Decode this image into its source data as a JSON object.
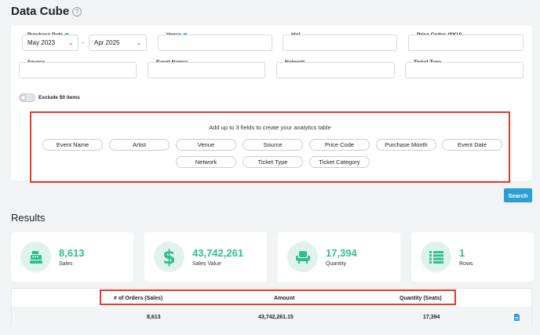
{
  "page": {
    "title": "Data Cube"
  },
  "filters": {
    "purchase_date_label": "Purchase Date",
    "purchase_date_from": "May 2023",
    "purchase_date_to": "Apr 2025",
    "date_separator": "–",
    "venue_label": "Venue",
    "idol_label": "Idol",
    "price_codes_label": "Price Codes (SKU)",
    "source_label": "Source",
    "event_names_label": "Event Names",
    "network_label": "Network",
    "ticket_type_label": "Ticket Type",
    "exclude_zero_label": "Exclude $0 items",
    "exclude_zero_enabled": false
  },
  "fields": {
    "instruction": "Add up to 3 fields to create your analytics table",
    "pills": [
      "Event Name",
      "Artist",
      "Venue",
      "Source",
      "Price Code",
      "Purchase Month",
      "Event Date",
      "Network",
      "Ticket Type",
      "Ticket Category"
    ]
  },
  "search_button": "Search",
  "results": {
    "title": "Results",
    "stats": [
      {
        "value": "8,613",
        "label": "Sales",
        "icon": "cash-register-icon"
      },
      {
        "value": "43,742,261",
        "label": "Sales Value",
        "icon": "dollar-icon"
      },
      {
        "value": "17,394",
        "label": "Quantity",
        "icon": "seat-icon"
      },
      {
        "value": "1",
        "label": "Rows",
        "icon": "list-icon"
      }
    ],
    "table": {
      "headers": [
        "# of Orders (Sales)",
        "Amount",
        "Quantity (Seats)"
      ],
      "rows": [
        [
          "8,613",
          "43,742,261.15",
          "17,394"
        ]
      ]
    }
  },
  "colors": {
    "accent": "#2a9fd6",
    "stat_green": "#2fbf8f",
    "highlight": "#e23b2a"
  }
}
